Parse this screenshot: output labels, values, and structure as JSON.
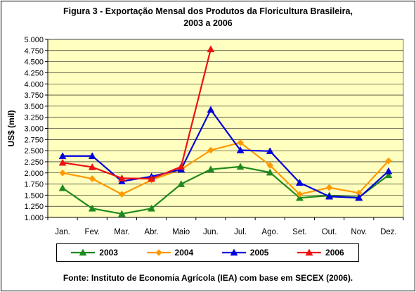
{
  "chart_data": {
    "type": "line",
    "title": [
      "Figura 3 - Exportação Mensal dos Produtos da Floricultura Brasileira,",
      "2003 a 2006"
    ],
    "ylabel": "US$ (mil)",
    "xlabel": "",
    "categories": [
      "Jan.",
      "Fev.",
      "Mar.",
      "Abr.",
      "Maio",
      "Jun.",
      "Jul.",
      "Ago.",
      "Set.",
      "Out.",
      "Nov.",
      "Dez."
    ],
    "ylim": [
      1000,
      5000
    ],
    "yticks": [
      1000,
      1250,
      1500,
      1750,
      2000,
      2250,
      2500,
      2750,
      3000,
      3250,
      3500,
      3750,
      4000,
      4250,
      4500,
      4750,
      5000
    ],
    "ytick_labels": [
      "1.000",
      "1.250",
      "1.500",
      "1.750",
      "2.000",
      "2.250",
      "2.500",
      "2.750",
      "3.000",
      "3.250",
      "3.500",
      "3.750",
      "4.000",
      "4.250",
      "4.500",
      "4.750",
      "5.000"
    ],
    "grid": true,
    "plot_background": "#ffffc0",
    "legend_position": "bottom",
    "series": [
      {
        "name": "2003",
        "color": "#1e8a1e",
        "marker": "triangle",
        "values": [
          1660,
          1200,
          1080,
          1200,
          1750,
          2080,
          2140,
          2010,
          1440,
          1490,
          1450,
          1950
        ]
      },
      {
        "name": "2004",
        "color": "#ff9900",
        "marker": "diamond",
        "values": [
          2000,
          1870,
          1520,
          1840,
          2080,
          2510,
          2680,
          2170,
          1520,
          1670,
          1550,
          2270
        ]
      },
      {
        "name": "2005",
        "color": "#0000dd",
        "marker": "triangle",
        "values": [
          2380,
          2380,
          1810,
          1920,
          2080,
          3420,
          2510,
          2490,
          1780,
          1470,
          1440,
          2040
        ]
      },
      {
        "name": "2006",
        "color": "#ee1111",
        "marker": "triangle",
        "values": [
          2230,
          2130,
          1880,
          1870,
          2140,
          4780,
          null,
          null,
          null,
          null,
          null,
          null
        ]
      }
    ]
  },
  "source": "Fonte: Instituto de Economia Agrícola (IEA) com base em SECEX (2006)."
}
